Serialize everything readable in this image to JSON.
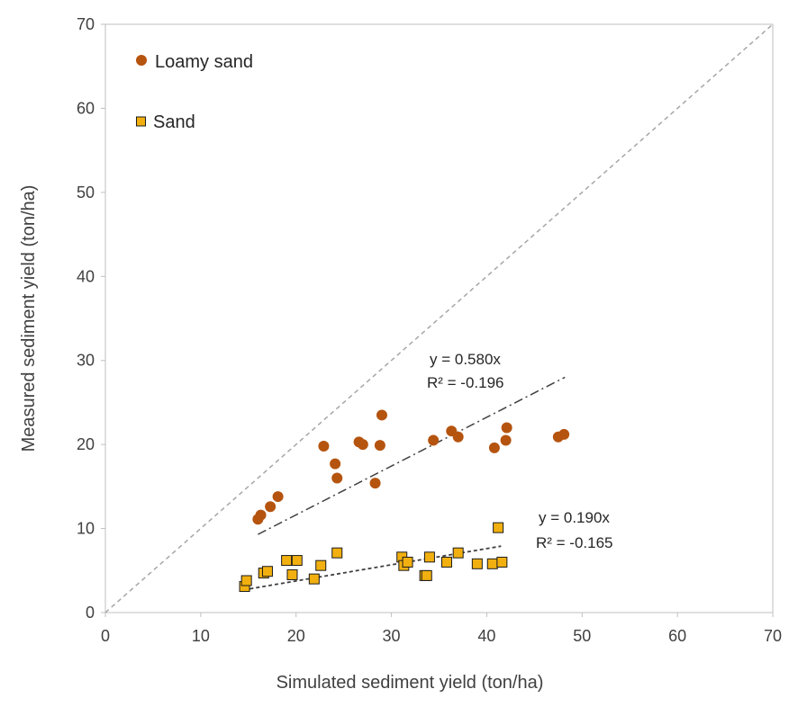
{
  "chart_data": {
    "type": "scatter",
    "title": "",
    "xlabel": "Simulated sediment yield (ton/ha)",
    "ylabel": "Measured sediment yield (ton/ha)",
    "xlim": [
      0,
      70
    ],
    "ylim": [
      0,
      70
    ],
    "xticks": [
      "0",
      "10",
      "20",
      "30",
      "40",
      "50",
      "60",
      "70"
    ],
    "yticks": [
      "0",
      "10",
      "20",
      "30",
      "40",
      "50",
      "60",
      "70"
    ],
    "grid": false,
    "legend_position": "top-left",
    "one_to_one_line": {
      "x": [
        0,
        70
      ],
      "y": [
        0,
        70
      ],
      "color": "#a6a6a6"
    },
    "series": [
      {
        "name": "Loamy sand",
        "marker": "circle",
        "color": "#b5540f",
        "x": [
          16.0,
          16.3,
          17.3,
          18.1,
          22.9,
          24.1,
          24.3,
          26.6,
          27.0,
          28.3,
          28.8,
          29.0,
          34.4,
          36.3,
          37.0,
          40.8,
          42.0,
          42.1,
          47.5,
          48.1
        ],
        "y": [
          11.1,
          11.6,
          12.6,
          13.8,
          19.8,
          17.7,
          16.0,
          20.3,
          20.0,
          15.4,
          19.9,
          23.5,
          20.5,
          21.6,
          20.9,
          19.6,
          20.5,
          22.0,
          20.9,
          21.2
        ],
        "trendline": {
          "x": [
            16.0,
            48.2
          ],
          "y": [
            9.3,
            28.0
          ],
          "color": "#404040"
        },
        "equation": "y = 0.580x",
        "r2": "R² = -0.196"
      },
      {
        "name": "Sand",
        "marker": "square",
        "color": "#f2b010",
        "x": [
          14.6,
          14.8,
          16.6,
          17.0,
          19.0,
          19.6,
          20.1,
          21.9,
          22.6,
          24.3,
          31.1,
          31.3,
          31.7,
          33.5,
          33.7,
          34.0,
          35.8,
          37.0,
          39.0,
          40.6,
          41.2,
          41.6
        ],
        "y": [
          3.1,
          3.8,
          4.7,
          4.9,
          6.2,
          4.5,
          6.2,
          4.0,
          5.6,
          7.1,
          6.6,
          5.6,
          6.0,
          4.4,
          4.4,
          6.6,
          6.0,
          7.1,
          5.8,
          5.8,
          10.1,
          6.0
        ],
        "trendline": {
          "x": [
            14.5,
            41.5
          ],
          "y": [
            2.7,
            7.9
          ],
          "color": "#404040"
        },
        "equation": "y = 0.190x",
        "r2": "R² = -0.165"
      }
    ]
  }
}
